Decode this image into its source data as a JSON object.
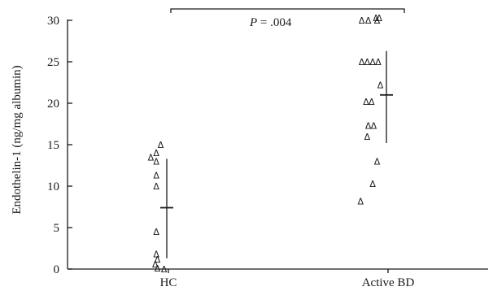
{
  "chart_data": {
    "type": "scatter",
    "title": "",
    "xlabel": "",
    "ylabel": "Endothelin-1 (ng/mg albumin)",
    "ylim": [
      0,
      30
    ],
    "yticks": [
      "0",
      "5",
      "10",
      "15",
      "20",
      "25",
      "30"
    ],
    "categories": [
      "HC",
      "Active BD"
    ],
    "marker_glyph": "Δ",
    "groups": [
      {
        "category": "HC",
        "points": [
          {
            "x": -0.035,
            "y": 15.0
          },
          {
            "x": -0.055,
            "y": 14.0
          },
          {
            "x": -0.08,
            "y": 13.5
          },
          {
            "x": -0.055,
            "y": 13.0
          },
          {
            "x": -0.055,
            "y": 11.3
          },
          {
            "x": -0.055,
            "y": 10.0
          },
          {
            "x": -0.055,
            "y": 4.5
          },
          {
            "x": -0.055,
            "y": 1.8
          },
          {
            "x": -0.05,
            "y": 1.2
          },
          {
            "x": -0.06,
            "y": 0.6
          },
          {
            "x": -0.05,
            "y": 0.1
          },
          {
            "x": -0.02,
            "y": 0.0
          }
        ],
        "mean": 7.4,
        "range": [
          1.3,
          13.3
        ]
      },
      {
        "category": "Active BD",
        "points": [
          {
            "x": -0.12,
            "y": 30.0
          },
          {
            "x": -0.09,
            "y": 30.0
          },
          {
            "x": -0.055,
            "y": 30.3
          },
          {
            "x": -0.04,
            "y": 30.3
          },
          {
            "x": -0.05,
            "y": 30.0
          },
          {
            "x": -0.12,
            "y": 25.0
          },
          {
            "x": -0.095,
            "y": 25.0
          },
          {
            "x": -0.07,
            "y": 25.0
          },
          {
            "x": -0.045,
            "y": 25.0
          },
          {
            "x": -0.035,
            "y": 22.2
          },
          {
            "x": -0.075,
            "y": 20.2
          },
          {
            "x": -0.1,
            "y": 20.2
          },
          {
            "x": -0.065,
            "y": 17.3
          },
          {
            "x": -0.09,
            "y": 17.3
          },
          {
            "x": -0.095,
            "y": 16.0
          },
          {
            "x": -0.05,
            "y": 13.0
          },
          {
            "x": -0.07,
            "y": 10.3
          },
          {
            "x": -0.125,
            "y": 8.2
          }
        ],
        "mean": 21.0,
        "range": [
          15.2,
          26.3
        ]
      }
    ],
    "annotation": {
      "p_label": "P",
      "p_value": " = .004"
    },
    "grid": false,
    "legend": "none"
  }
}
